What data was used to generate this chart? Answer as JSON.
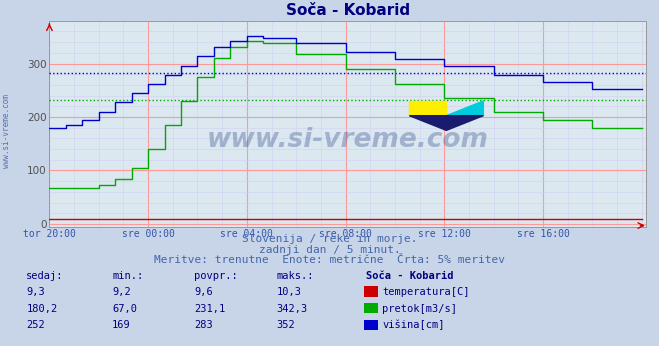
{
  "title": "Soča - Kobarid",
  "title_color": "#000080",
  "bg_color": "#c8d4e8",
  "plot_bg_color": "#dce8f0",
  "grid_color_major": "#ff9999",
  "grid_color_minor": "#d0d0f0",
  "xticklabels": [
    "tor 20:00",
    "sre 00:00",
    "sre 04:00",
    "sre 08:00",
    "sre 12:00",
    "sre 16:00"
  ],
  "yticks": [
    0,
    100,
    200,
    300
  ],
  "ylim": [
    -5,
    380
  ],
  "xlim": [
    0,
    290
  ],
  "watermark_text": "www.si-vreme.com",
  "subtitle1": "Slovenija / reke in morje.",
  "subtitle2": "zadnji dan / 5 minut.",
  "subtitle3": "Meritve: trenutne  Enote: metrične  Črta: 5% meritev",
  "subtitle_color": "#4466aa",
  "table_header": [
    "sedaj:",
    "min.:",
    "povpr.:",
    "maks.:",
    "Soča - Kobarid"
  ],
  "table_color": "#000080",
  "rows": [
    {
      "values": [
        "9,3",
        "9,2",
        "9,6",
        "10,3"
      ],
      "label": "temperatura[C]",
      "color": "#cc0000"
    },
    {
      "values": [
        "180,2",
        "67,0",
        "231,1",
        "342,3"
      ],
      "label": "pretok[m3/s]",
      "color": "#00aa00"
    },
    {
      "values": [
        "252",
        "169",
        "283",
        "352"
      ],
      "label": "višina[cm]",
      "color": "#0000cc"
    }
  ],
  "avg_pretok": 231.1,
  "avg_vishina": 283,
  "xtick_positions": [
    0,
    48,
    96,
    144,
    192,
    240
  ],
  "n_points": 289,
  "pretok_color": "#00aa00",
  "vishina_color": "#0000cc",
  "temp_color": "#cc0000"
}
